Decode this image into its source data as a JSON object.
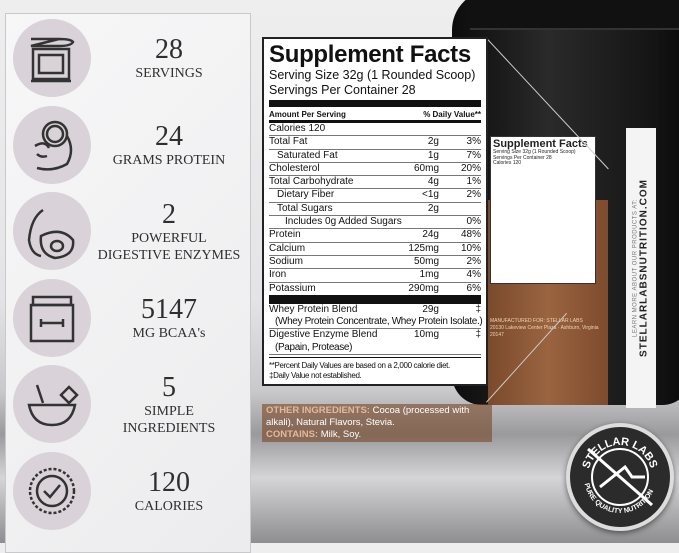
{
  "features": [
    {
      "icon": "container-scoop-icon",
      "number": "28",
      "label": [
        "SERVINGS"
      ]
    },
    {
      "icon": "flexed-arm-icon",
      "number": "24",
      "label": [
        "GRAMS PROTEIN"
      ]
    },
    {
      "icon": "papaya-icon",
      "number": "2",
      "label": [
        "POWERFUL",
        "DIGESTIVE ENZYMES"
      ]
    },
    {
      "icon": "bcaa-tub-dumbbell-icon",
      "number": "5147",
      "label": [
        "MG BCAA's"
      ]
    },
    {
      "icon": "mixing-bowl-icon",
      "number": "5",
      "label": [
        "SIMPLE",
        "INGREDIENTS"
      ]
    },
    {
      "icon": "checkmark-badge-icon",
      "number": "120",
      "label": [
        "CALORIES"
      ]
    }
  ],
  "facts": {
    "title": "Supplement Facts",
    "serving_size": "Serving Size 32g (1 Rounded Scoop)",
    "servings_per_container": "Servings Per Container  28",
    "amount_header": "Amount Per Serving",
    "dv_header": "% Daily Value**",
    "calories": "Calories  120",
    "rows": [
      {
        "name": "Total Fat",
        "amount": "2g",
        "dv": "3%",
        "indent": 0
      },
      {
        "name": "Saturated Fat",
        "amount": "1g",
        "dv": "7%",
        "indent": 1
      },
      {
        "name": "Cholesterol",
        "amount": "60mg",
        "dv": "20%",
        "indent": 0
      },
      {
        "name": "Total Carbohydrate",
        "amount": "4g",
        "dv": "1%",
        "indent": 0
      },
      {
        "name": "Dietary Fiber",
        "amount": "<1g",
        "dv": "2%",
        "indent": 1
      },
      {
        "name": "Total Sugars",
        "amount": "2g",
        "dv": "",
        "indent": 1
      },
      {
        "name": "Includes 0g Added Sugars",
        "amount": "",
        "dv": "0%",
        "indent": 2
      },
      {
        "name": "Protein",
        "amount": "24g",
        "dv": "48%",
        "indent": 0
      },
      {
        "name": "Calcium",
        "amount": "125mg",
        "dv": "10%",
        "indent": 0
      },
      {
        "name": "Sodium",
        "amount": "50mg",
        "dv": "2%",
        "indent": 0
      },
      {
        "name": "Iron",
        "amount": "1mg",
        "dv": "4%",
        "indent": 0
      },
      {
        "name": "Potassium",
        "amount": "290mg",
        "dv": "6%",
        "indent": 0
      }
    ],
    "blends": [
      {
        "name": "Whey Protein Blend",
        "amount": "29g",
        "dv": "‡",
        "sub": "(Whey Protein Concentrate, Whey Protein Isolate.)"
      },
      {
        "name": "Digestive Enzyme Blend",
        "amount": "10mg",
        "dv": "‡",
        "sub": "(Papain, Protease)"
      }
    ],
    "footnote1": "**Percent Daily Values are based on a 2,000 calorie diet.",
    "footnote2": "‡Daily Value not established."
  },
  "ingredients": {
    "other_label": "OTHER INGREDIENTS:",
    "other_text": " Cocoa (processed with alkali), Natural Flavors, Stevia.",
    "contains_label": "CONTAINS:",
    "contains_text": " Milk, Soy."
  },
  "jar": {
    "label_small": "LEARN MORE ABOUT OUR PRODUCTS AT:",
    "url": "STELLARLABSNUTRITION.COM",
    "manufactured_for": "MANUFACTURED FOR: STELLAR LABS",
    "address": "20130 Lakeview Center Plaza · Ashburn, Virginia 20147"
  },
  "logo": {
    "top": "STELLAR LABS",
    "bottom": "PURE QUALITY NUTRITION"
  },
  "colors": {
    "icon_circle": "#d9d2d8",
    "label_brown": "#8a5636",
    "ingredient_label": "#e6b89a"
  }
}
